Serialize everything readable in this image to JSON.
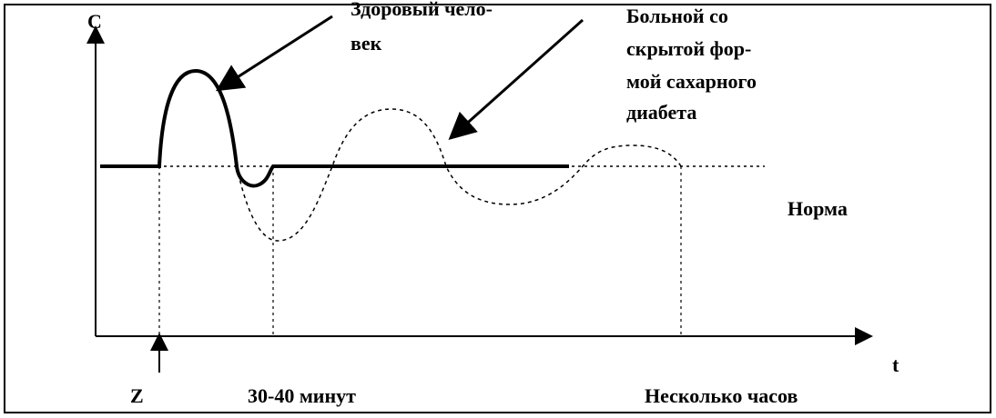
{
  "axis_y_label": "C",
  "axis_x_label": "t",
  "healthy_label": [
    "Здоровый чело-",
    "век"
  ],
  "patient_label": [
    "Больной  со",
    "скрытой фор-",
    "мой сахарного",
    "диабета"
  ],
  "norm_label": "Норма",
  "time_labels": [
    "Z",
    "30-40 минут",
    "Несколько часов"
  ]
}
